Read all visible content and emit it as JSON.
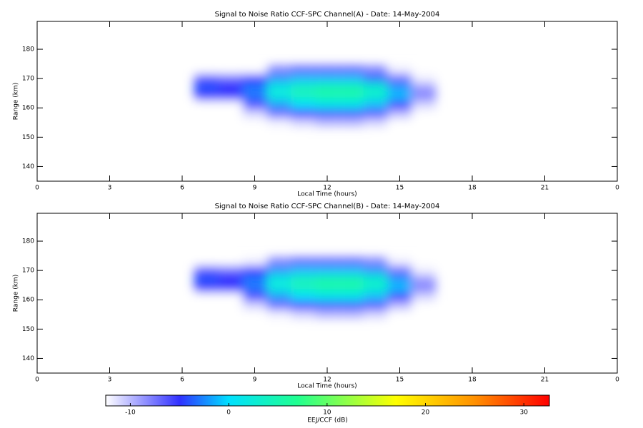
{
  "chart_data": [
    {
      "type": "heatmap",
      "title": "Signal to Noise Ratio CCF-SPC Channel(A) - Date: 14-May-2004",
      "x_label": "Local Time (hours)",
      "y_label": "Range (km)",
      "xlim": [
        0,
        24
      ],
      "xticks": [
        0,
        3,
        6,
        9,
        12,
        15,
        18,
        21,
        {
          "value": 24,
          "label": "0"
        }
      ],
      "ylim": [
        135,
        189.5
      ],
      "yticks": [
        140,
        150,
        160,
        170,
        180
      ],
      "x": [
        7,
        8,
        9,
        10,
        11,
        12,
        13,
        14,
        15,
        16
      ],
      "y": [
        173,
        170,
        167,
        164,
        161,
        158,
        155
      ],
      "z": [
        [
          -13,
          -13,
          -13,
          -8,
          -7,
          -7,
          -7,
          -8,
          -12,
          -13
        ],
        [
          -6,
          -7,
          -5,
          -2,
          -1,
          -1,
          -1,
          -3,
          -7,
          -12
        ],
        [
          -4,
          -5,
          -3,
          2,
          4,
          5,
          5,
          3,
          -2,
          -9
        ],
        [
          -5,
          -5,
          -3,
          2,
          4,
          5,
          5,
          3,
          -1,
          -8
        ],
        [
          -13,
          -13,
          -6,
          -2,
          0,
          1,
          1,
          -1,
          -5,
          -11
        ],
        [
          -13,
          -13,
          -11,
          -7,
          -5,
          -4,
          -4,
          -6,
          -10,
          -13
        ],
        [
          -13,
          -13,
          -13,
          -12,
          -11,
          -10,
          -10,
          -11,
          -13,
          -13
        ]
      ]
    },
    {
      "type": "heatmap",
      "title": "Signal to Noise Ratio CCF-SPC Channel(B) - Date: 14-May-2004",
      "x_label": "Local Time (hours)",
      "y_label": "Range (km)",
      "xlim": [
        0,
        24
      ],
      "xticks": [
        0,
        3,
        6,
        9,
        12,
        15,
        18,
        21,
        {
          "value": 24,
          "label": "0"
        }
      ],
      "ylim": [
        135,
        189.5
      ],
      "yticks": [
        140,
        150,
        160,
        170,
        180
      ],
      "x": [
        7,
        8,
        9,
        10,
        11,
        12,
        13,
        14,
        15,
        16
      ],
      "y": [
        173,
        170,
        167,
        164,
        161,
        158,
        155
      ],
      "z": [
        [
          -13,
          -13,
          -12,
          -8,
          -7,
          -7,
          -7,
          -8,
          -12,
          -13
        ],
        [
          -6,
          -7,
          -5,
          -2,
          -1,
          -1,
          -1,
          -2,
          -7,
          -12
        ],
        [
          -4,
          -5,
          -3,
          2,
          4,
          5,
          5,
          3,
          -2,
          -9
        ],
        [
          -5,
          -5,
          -3,
          2,
          4,
          5,
          5,
          3,
          -1,
          -8
        ],
        [
          -13,
          -13,
          -6,
          -2,
          0,
          1,
          1,
          -1,
          -5,
          -11
        ],
        [
          -13,
          -13,
          -11,
          -7,
          -5,
          -4,
          -4,
          -6,
          -10,
          -13
        ],
        [
          -13,
          -13,
          -13,
          -12,
          -11,
          -10,
          -10,
          -11,
          -13,
          -13
        ]
      ]
    }
  ],
  "colorbar": {
    "label": "EEJ/CCF (dB)",
    "zlim": [
      -12.5,
      32.6
    ],
    "ticks": [
      -10,
      0,
      10,
      20,
      30
    ],
    "colorscale": [
      [
        -12.5,
        "#ffffff"
      ],
      [
        -5,
        "#3030ff"
      ],
      [
        0,
        "#00e0ff"
      ],
      [
        7,
        "#20ff90"
      ],
      [
        17,
        "#ffff00"
      ],
      [
        25,
        "#ff9000"
      ],
      [
        32.6,
        "#ff0000"
      ]
    ]
  }
}
